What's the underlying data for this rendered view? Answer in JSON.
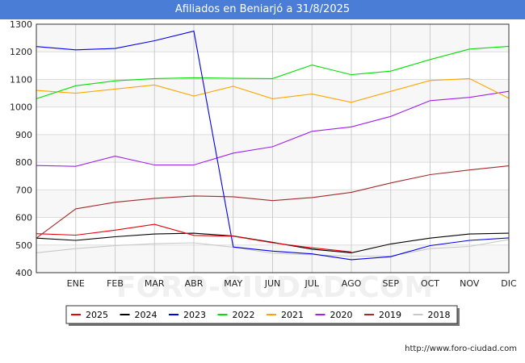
{
  "chart_data": {
    "type": "line",
    "title": "Afiliados en Beniarjó a 31/8/2025",
    "xlabel": "",
    "ylabel": "",
    "categories": [
      "",
      "ENE",
      "FEB",
      "MAR",
      "ABR",
      "MAY",
      "JUN",
      "JUL",
      "AGO",
      "SEP",
      "OCT",
      "NOV",
      "DIC"
    ],
    "ylim": [
      400,
      1300
    ],
    "yticks": [
      400,
      500,
      600,
      700,
      800,
      900,
      1000,
      1100,
      1200,
      1300
    ],
    "legend_position": "bottom",
    "series": [
      {
        "name": "2025",
        "color": "#e8000b",
        "values": [
          541,
          536,
          554,
          575,
          535,
          532,
          508,
          490,
          475,
          null,
          null,
          null,
          null
        ]
      },
      {
        "name": "2024",
        "color": "#000000",
        "values": [
          525,
          517,
          530,
          540,
          543,
          533,
          510,
          485,
          472,
          504,
          525,
          540,
          543
        ]
      },
      {
        "name": "2023",
        "color": "#0000ee",
        "values": [
          1219,
          1207,
          1212,
          1240,
          1275,
          493,
          478,
          468,
          447,
          458,
          498,
          517,
          526
        ]
      },
      {
        "name": "2022",
        "color": "#00e000",
        "values": [
          1030,
          1077,
          1095,
          1103,
          1106,
          1104,
          1103,
          1152,
          1117,
          1130,
          1172,
          1210,
          1220
        ]
      },
      {
        "name": "2021",
        "color": "#ffa500",
        "values": [
          1060,
          1050,
          1065,
          1080,
          1040,
          1075,
          1030,
          1047,
          1017,
          1057,
          1096,
          1103,
          1032
        ]
      },
      {
        "name": "2020",
        "color": "#a020f0",
        "values": [
          788,
          785,
          822,
          790,
          790,
          833,
          856,
          912,
          928,
          966,
          1023,
          1035,
          1057
        ]
      },
      {
        "name": "2019",
        "color": "#a52a2a",
        "values": [
          525,
          631,
          655,
          669,
          678,
          675,
          661,
          672,
          691,
          725,
          755,
          772,
          787
        ]
      },
      {
        "name": "2018",
        "color": "#c8c8c8",
        "values": [
          472,
          487,
          498,
          505,
          508,
          492,
          470,
          465,
          460,
          460,
          487,
          495,
          520
        ]
      }
    ]
  },
  "footer": {
    "source": "http://www.foro-ciudad.com"
  },
  "watermark": "FORO-CIUDAD.COM"
}
